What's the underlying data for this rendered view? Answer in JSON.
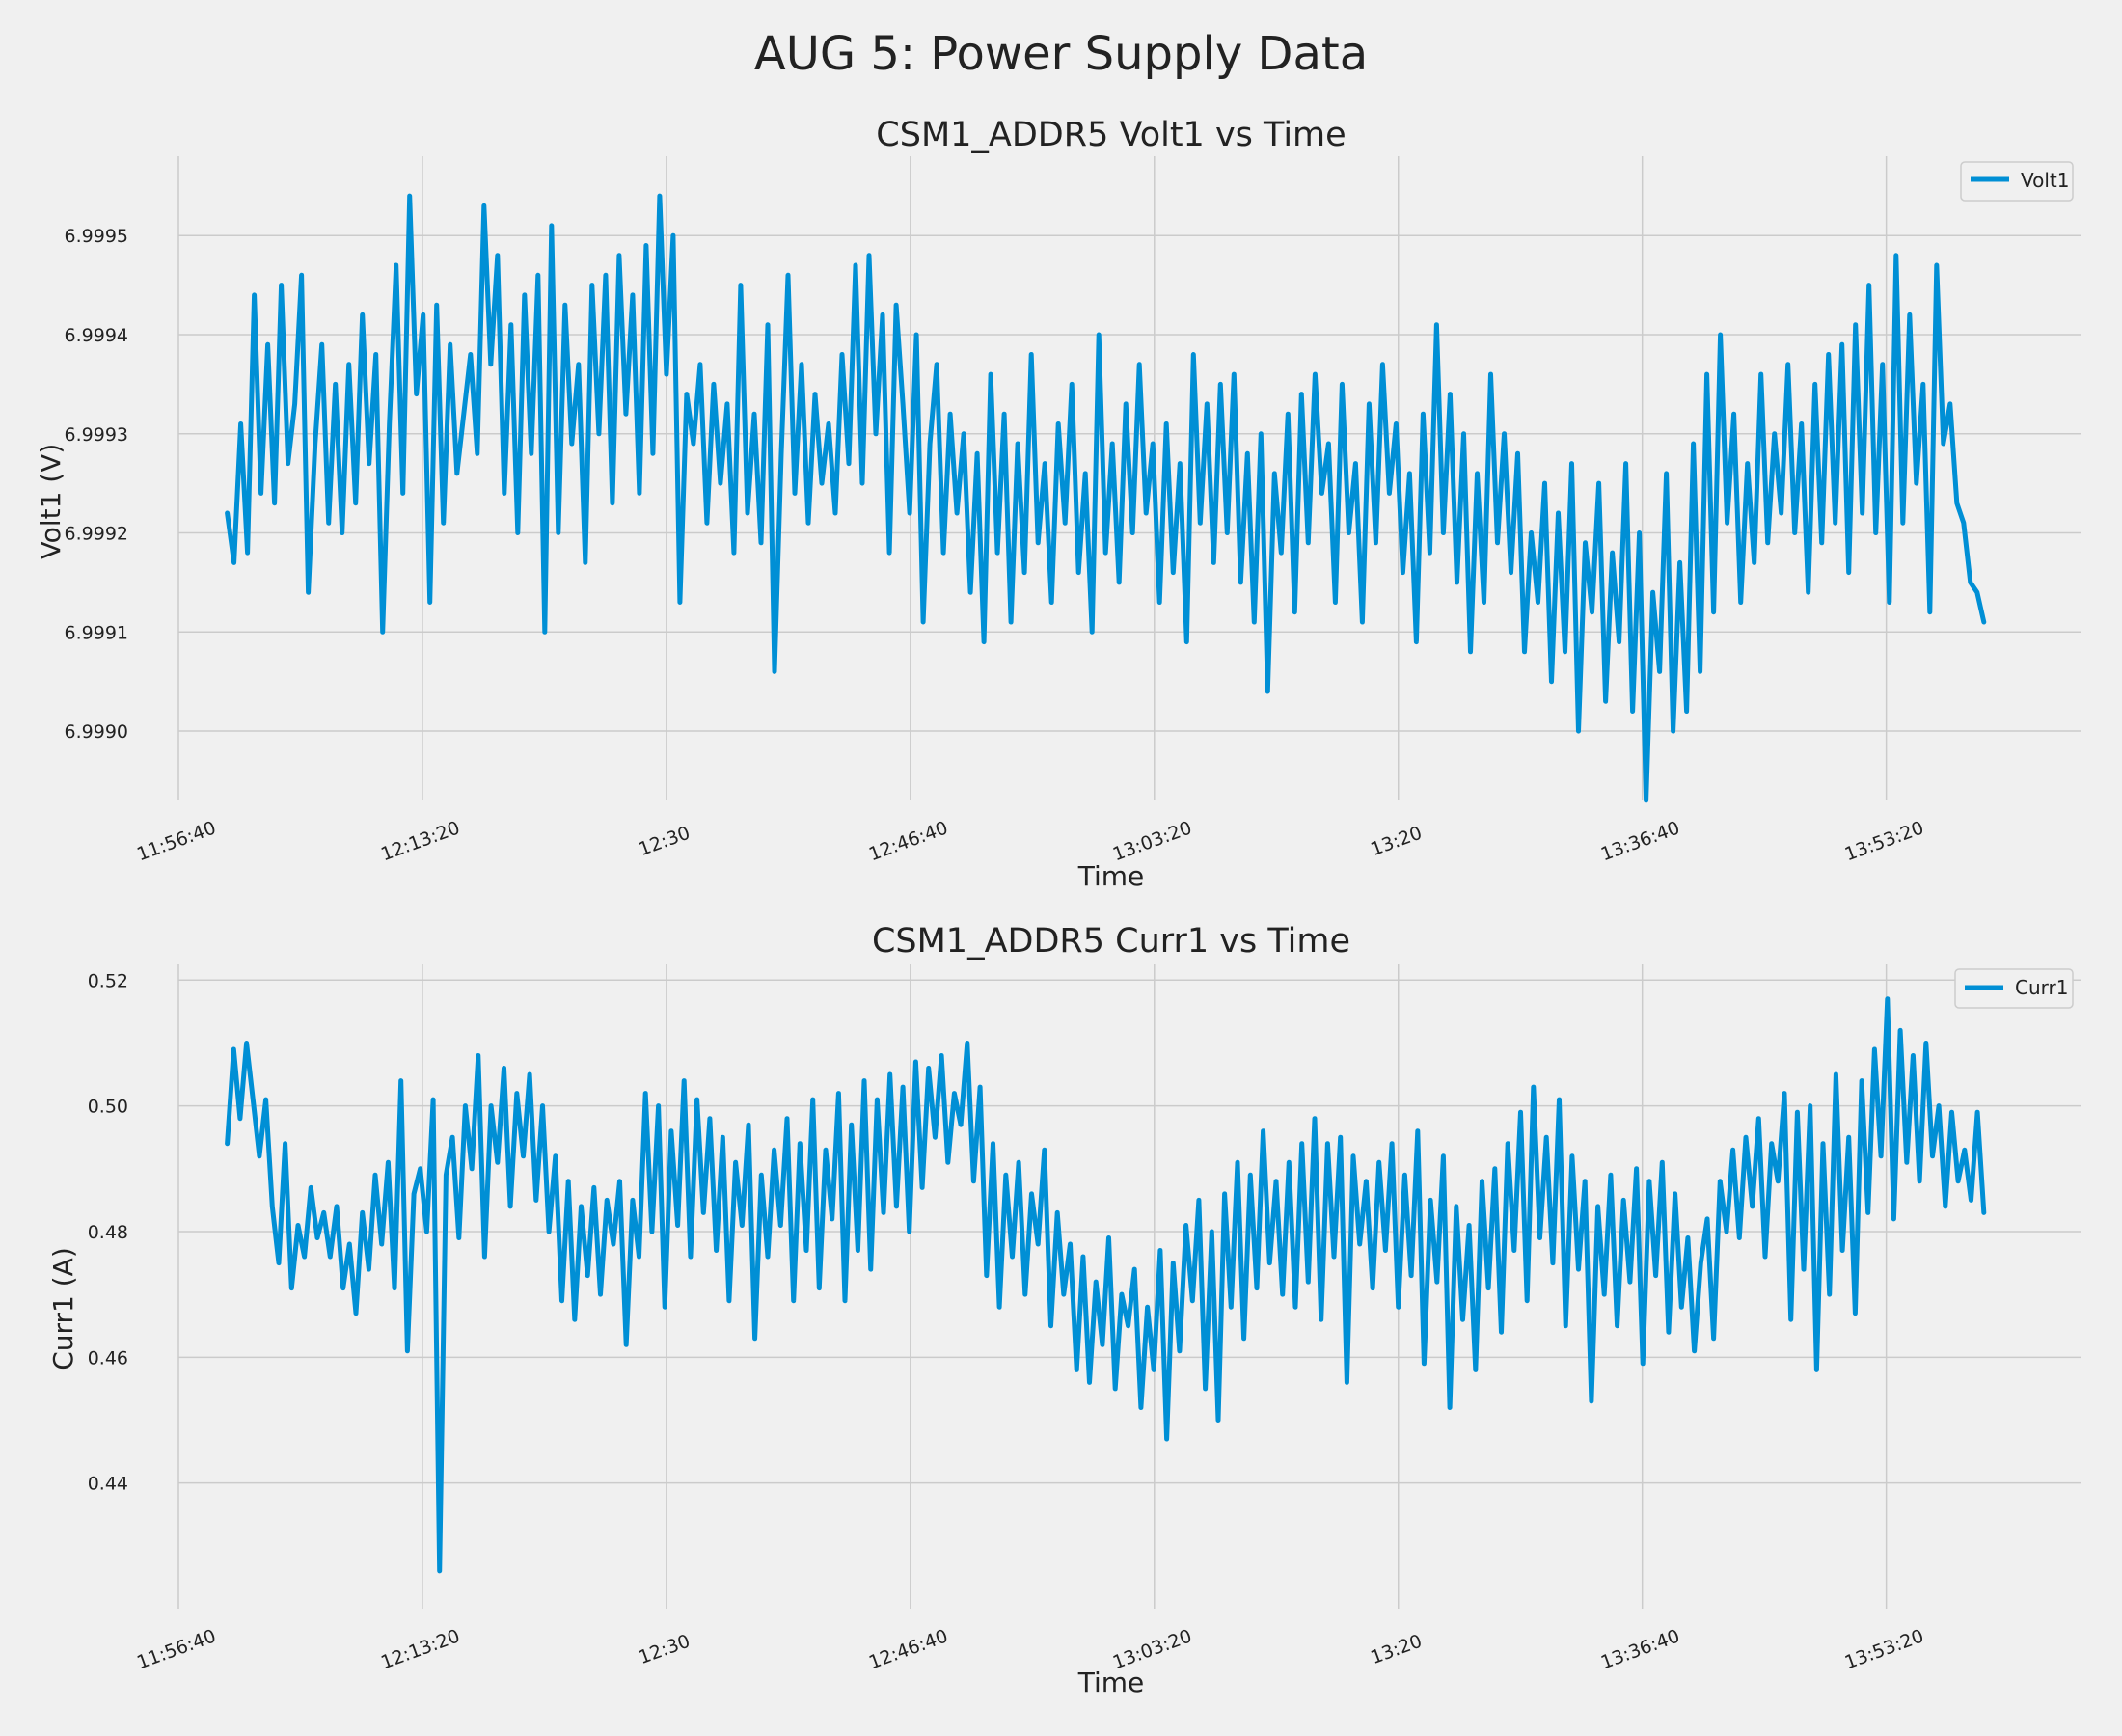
{
  "suptitle": "AUG 5: Power Supply Data",
  "colors": {
    "background": "#f0f0f0",
    "grid": "#cbcbcb",
    "line": "#008fd5",
    "text": "#222222",
    "legend_border": "#cccccc"
  },
  "chart_data": [
    {
      "type": "line",
      "title": "CSM1_ADDR5 Volt1 vs Time",
      "xlabel": "Time",
      "ylabel": "Volt1 (V)",
      "legend": "top-right",
      "grid": true,
      "x_time_seconds_range": [
        43000,
        50800
      ],
      "xticks": [
        {
          "t": 43000,
          "label": "11:56:40"
        },
        {
          "t": 44000,
          "label": "12:13:20"
        },
        {
          "t": 45000,
          "label": "12:30"
        },
        {
          "t": 46000,
          "label": "12:46:40"
        },
        {
          "t": 47000,
          "label": "13:03:20"
        },
        {
          "t": 48000,
          "label": "13:20"
        },
        {
          "t": 49000,
          "label": "13:36:40"
        },
        {
          "t": 50000,
          "label": "13:53:20"
        }
      ],
      "ylim": [
        6.99893,
        6.99958
      ],
      "yticks": [
        {
          "v": 6.999,
          "label": "6.9990"
        },
        {
          "v": 6.9991,
          "label": "6.9991"
        },
        {
          "v": 6.9992,
          "label": "6.9992"
        },
        {
          "v": 6.9993,
          "label": "6.9993"
        },
        {
          "v": 6.9994,
          "label": "6.9994"
        },
        {
          "v": 6.9995,
          "label": "6.9995"
        }
      ],
      "series": [
        {
          "name": "Volt1",
          "t_start": 43200,
          "t_end": 50400,
          "values": [
            6.99922,
            6.99917,
            6.99931,
            6.99918,
            6.99944,
            6.99924,
            6.99939,
            6.99923,
            6.99945,
            6.99927,
            6.99933,
            6.99946,
            6.99914,
            6.99929,
            6.99939,
            6.99921,
            6.99935,
            6.9992,
            6.99937,
            6.99923,
            6.99942,
            6.99927,
            6.99938,
            6.9991,
            6.99931,
            6.99947,
            6.99924,
            6.99954,
            6.99934,
            6.99942,
            6.99913,
            6.99943,
            6.99921,
            6.99939,
            6.99926,
            6.99932,
            6.99938,
            6.99928,
            6.99953,
            6.99937,
            6.99948,
            6.99924,
            6.99941,
            6.9992,
            6.99944,
            6.99928,
            6.99946,
            6.9991,
            6.99951,
            6.9992,
            6.99943,
            6.99929,
            6.99937,
            6.99917,
            6.99945,
            6.9993,
            6.99946,
            6.99923,
            6.99948,
            6.99932,
            6.99944,
            6.99924,
            6.99949,
            6.99928,
            6.99954,
            6.99936,
            6.9995,
            6.99913,
            6.99934,
            6.99929,
            6.99937,
            6.99921,
            6.99935,
            6.99925,
            6.99933,
            6.99918,
            6.99945,
            6.99922,
            6.99932,
            6.99919,
            6.99941,
            6.99906,
            6.99928,
            6.99946,
            6.99924,
            6.99937,
            6.99921,
            6.99934,
            6.99925,
            6.99931,
            6.99922,
            6.99938,
            6.99927,
            6.99947,
            6.99925,
            6.99948,
            6.9993,
            6.99942,
            6.99918,
            6.99943,
            6.99933,
            6.99922,
            6.9994,
            6.99911,
            6.99929,
            6.99937,
            6.99918,
            6.99932,
            6.99922,
            6.9993,
            6.99914,
            6.99928,
            6.99909,
            6.99936,
            6.99918,
            6.99932,
            6.99911,
            6.99929,
            6.99916,
            6.99938,
            6.99919,
            6.99927,
            6.99913,
            6.99931,
            6.99921,
            6.99935,
            6.99916,
            6.99926,
            6.9991,
            6.9994,
            6.99918,
            6.99929,
            6.99915,
            6.99933,
            6.9992,
            6.99937,
            6.99922,
            6.99929,
            6.99913,
            6.99931,
            6.99916,
            6.99927,
            6.99909,
            6.99938,
            6.99921,
            6.99933,
            6.99917,
            6.99935,
            6.9992,
            6.99936,
            6.99915,
            6.99928,
            6.99911,
            6.9993,
            6.99904,
            6.99926,
            6.99918,
            6.99932,
            6.99912,
            6.99934,
            6.99919,
            6.99936,
            6.99924,
            6.99929,
            6.99913,
            6.99935,
            6.9992,
            6.99927,
            6.99911,
            6.99933,
            6.99919,
            6.99937,
            6.99924,
            6.99931,
            6.99916,
            6.99926,
            6.99909,
            6.99932,
            6.99918,
            6.99941,
            6.9992,
            6.99934,
            6.99915,
            6.9993,
            6.99908,
            6.99926,
            6.99913,
            6.99936,
            6.99919,
            6.9993,
            6.99916,
            6.99928,
            6.99908,
            6.9992,
            6.99913,
            6.99925,
            6.99905,
            6.99922,
            6.99908,
            6.99927,
            6.999,
            6.99919,
            6.99912,
            6.99925,
            6.99903,
            6.99918,
            6.99909,
            6.99927,
            6.99902,
            6.9992,
            6.99893,
            6.99914,
            6.99906,
            6.99926,
            6.999,
            6.99917,
            6.99902,
            6.99929,
            6.99906,
            6.99936,
            6.99912,
            6.9994,
            6.99921,
            6.99932,
            6.99913,
            6.99927,
            6.99917,
            6.99936,
            6.99919,
            6.9993,
            6.99922,
            6.99937,
            6.9992,
            6.99931,
            6.99914,
            6.99935,
            6.99919,
            6.99938,
            6.99921,
            6.99939,
            6.99916,
            6.99941,
            6.99922,
            6.99945,
            6.9992,
            6.99937,
            6.99913,
            6.99948,
            6.99921,
            6.99942,
            6.99925,
            6.99935,
            6.99912,
            6.99947,
            6.99929,
            6.99933,
            6.99923,
            6.99921,
            6.99915,
            6.99914,
            6.99911
          ]
        }
      ]
    },
    {
      "type": "line",
      "title": "CSM1_ADDR5 Curr1 vs Time",
      "xlabel": "Time",
      "ylabel": "Curr1 (A)",
      "legend": "top-right",
      "grid": true,
      "x_time_seconds_range": [
        43000,
        50800
      ],
      "xticks": [
        {
          "t": 43000,
          "label": "11:56:40"
        },
        {
          "t": 44000,
          "label": "12:13:20"
        },
        {
          "t": 45000,
          "label": "12:30"
        },
        {
          "t": 46000,
          "label": "12:46:40"
        },
        {
          "t": 47000,
          "label": "13:03:20"
        },
        {
          "t": 48000,
          "label": "13:20"
        },
        {
          "t": 49000,
          "label": "13:36:40"
        },
        {
          "t": 50000,
          "label": "13:53:20"
        }
      ],
      "ylim": [
        0.42,
        0.5225
      ],
      "yticks": [
        {
          "v": 0.44,
          "label": "0.44"
        },
        {
          "v": 0.46,
          "label": "0.46"
        },
        {
          "v": 0.48,
          "label": "0.48"
        },
        {
          "v": 0.5,
          "label": "0.50"
        },
        {
          "v": 0.52,
          "label": "0.52"
        }
      ],
      "series": [
        {
          "name": "Curr1",
          "t_start": 43200,
          "t_end": 50400,
          "values": [
            0.494,
            0.509,
            0.498,
            0.51,
            0.501,
            0.492,
            0.501,
            0.484,
            0.475,
            0.494,
            0.471,
            0.481,
            0.476,
            0.487,
            0.479,
            0.483,
            0.476,
            0.484,
            0.471,
            0.478,
            0.467,
            0.483,
            0.474,
            0.489,
            0.478,
            0.491,
            0.471,
            0.504,
            0.461,
            0.486,
            0.49,
            0.48,
            0.501,
            0.426,
            0.489,
            0.495,
            0.479,
            0.5,
            0.49,
            0.508,
            0.476,
            0.5,
            0.491,
            0.506,
            0.484,
            0.502,
            0.492,
            0.505,
            0.485,
            0.5,
            0.48,
            0.492,
            0.469,
            0.488,
            0.466,
            0.484,
            0.473,
            0.487,
            0.47,
            0.485,
            0.478,
            0.488,
            0.462,
            0.485,
            0.476,
            0.502,
            0.48,
            0.5,
            0.468,
            0.496,
            0.481,
            0.504,
            0.476,
            0.501,
            0.483,
            0.498,
            0.477,
            0.495,
            0.469,
            0.491,
            0.481,
            0.497,
            0.463,
            0.489,
            0.476,
            0.493,
            0.481,
            0.498,
            0.469,
            0.494,
            0.477,
            0.501,
            0.471,
            0.493,
            0.482,
            0.502,
            0.469,
            0.497,
            0.477,
            0.504,
            0.474,
            0.501,
            0.483,
            0.505,
            0.484,
            0.503,
            0.48,
            0.507,
            0.487,
            0.506,
            0.495,
            0.508,
            0.491,
            0.502,
            0.497,
            0.51,
            0.488,
            0.503,
            0.473,
            0.494,
            0.468,
            0.489,
            0.476,
            0.491,
            0.47,
            0.486,
            0.478,
            0.493,
            0.465,
            0.483,
            0.47,
            0.478,
            0.458,
            0.476,
            0.456,
            0.472,
            0.462,
            0.479,
            0.455,
            0.47,
            0.465,
            0.474,
            0.452,
            0.468,
            0.458,
            0.477,
            0.447,
            0.475,
            0.461,
            0.481,
            0.469,
            0.485,
            0.455,
            0.48,
            0.45,
            0.486,
            0.468,
            0.491,
            0.463,
            0.489,
            0.471,
            0.496,
            0.475,
            0.488,
            0.47,
            0.491,
            0.468,
            0.494,
            0.472,
            0.498,
            0.466,
            0.494,
            0.476,
            0.495,
            0.456,
            0.492,
            0.478,
            0.488,
            0.471,
            0.491,
            0.477,
            0.494,
            0.468,
            0.489,
            0.473,
            0.496,
            0.459,
            0.485,
            0.472,
            0.492,
            0.452,
            0.484,
            0.466,
            0.481,
            0.458,
            0.488,
            0.471,
            0.49,
            0.464,
            0.494,
            0.477,
            0.499,
            0.469,
            0.503,
            0.479,
            0.495,
            0.475,
            0.501,
            0.465,
            0.492,
            0.474,
            0.488,
            0.453,
            0.484,
            0.47,
            0.489,
            0.465,
            0.485,
            0.472,
            0.49,
            0.459,
            0.488,
            0.473,
            0.491,
            0.464,
            0.486,
            0.468,
            0.479,
            0.461,
            0.475,
            0.482,
            0.463,
            0.488,
            0.48,
            0.493,
            0.479,
            0.495,
            0.484,
            0.498,
            0.476,
            0.494,
            0.488,
            0.502,
            0.466,
            0.499,
            0.474,
            0.5,
            0.458,
            0.494,
            0.47,
            0.505,
            0.477,
            0.495,
            0.467,
            0.504,
            0.483,
            0.509,
            0.492,
            0.517,
            0.482,
            0.512,
            0.491,
            0.508,
            0.488,
            0.51,
            0.492,
            0.5,
            0.484,
            0.499,
            0.488,
            0.493,
            0.485,
            0.499,
            0.483
          ]
        }
      ]
    }
  ]
}
